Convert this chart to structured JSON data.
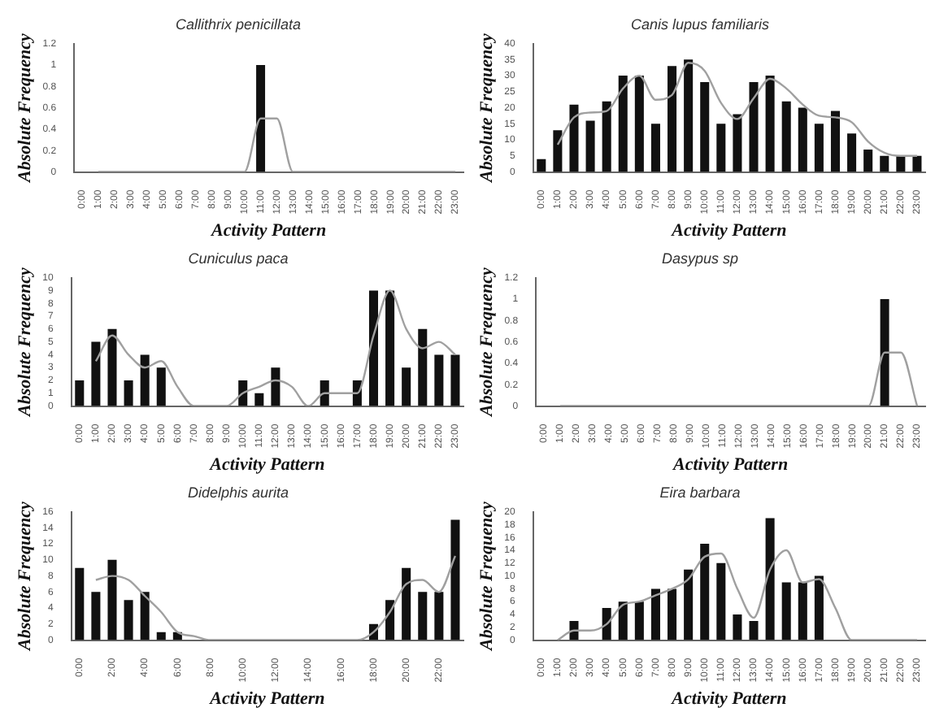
{
  "chart_data": [
    {
      "type": "bar",
      "title": "Callithrix penicillata",
      "xlabel": "Activity Pattern",
      "ylabel": "Absolute Frequency",
      "legend": false,
      "marker": "none",
      "categories": [
        "0:00",
        "1:00",
        "2:00",
        "3:00",
        "4:00",
        "5:00",
        "6:00",
        "7:00",
        "8:00",
        "9:00",
        "10:00",
        "11:00",
        "12:00",
        "13:00",
        "14:00",
        "15:00",
        "16:00",
        "17:00",
        "18:00",
        "19:00",
        "20:00",
        "21:00",
        "22:00",
        "23:00"
      ],
      "ylim": [
        0,
        1.2
      ],
      "yticks": [
        0,
        0.2,
        0.4,
        0.6,
        0.8,
        1,
        1.2
      ],
      "series": [
        {
          "type": "bar",
          "color": "#111111",
          "values": [
            0,
            0,
            0,
            0,
            0,
            0,
            0,
            0,
            0,
            0,
            0,
            1,
            0,
            0,
            0,
            0,
            0,
            0,
            0,
            0,
            0,
            0,
            0,
            0
          ]
        },
        {
          "type": "line",
          "color": "#a0a0a0",
          "values": [
            null,
            0,
            0,
            0,
            0,
            0,
            0,
            0,
            0,
            0,
            0,
            0.5,
            0.5,
            0,
            0,
            0,
            0,
            0,
            0,
            0,
            0,
            0,
            0,
            0
          ]
        }
      ]
    },
    {
      "type": "bar",
      "title": "Canis lupus familiaris",
      "xlabel": "Activity Pattern",
      "ylabel": "Absolute Frequency",
      "legend": false,
      "marker": "none",
      "categories": [
        "0:00",
        "1:00",
        "2:00",
        "3:00",
        "4:00",
        "5:00",
        "6:00",
        "7:00",
        "8:00",
        "9:00",
        "10:00",
        "11:00",
        "12:00",
        "13:00",
        "14:00",
        "15:00",
        "16:00",
        "17:00",
        "18:00",
        "19:00",
        "20:00",
        "21:00",
        "22:00",
        "23:00"
      ],
      "ylim": [
        0,
        40
      ],
      "yticks": [
        0,
        5,
        10,
        15,
        20,
        25,
        30,
        35,
        40
      ],
      "series": [
        {
          "type": "bar",
          "color": "#111111",
          "values": [
            4,
            13,
            21,
            16,
            22,
            30,
            30,
            15,
            33,
            35,
            28,
            15,
            18,
            28,
            30,
            22,
            20,
            15,
            19,
            12,
            7,
            5,
            5,
            5
          ]
        },
        {
          "type": "line",
          "color": "#a0a0a0",
          "values": [
            null,
            8.5,
            17,
            18.5,
            19,
            26,
            30,
            22.5,
            24,
            34,
            31.5,
            21.5,
            16.5,
            23,
            29,
            26,
            21,
            17.5,
            17,
            15.5,
            9.5,
            6,
            5,
            5
          ]
        }
      ]
    },
    {
      "type": "bar",
      "title": "Cuniculus paca",
      "xlabel": "Activity Pattern",
      "ylabel": "Absolute Frequency",
      "legend": false,
      "marker": "none",
      "categories": [
        "0:00",
        "1:00",
        "2:00",
        "3:00",
        "4:00",
        "5:00",
        "6:00",
        "7:00",
        "8:00",
        "9:00",
        "10:00",
        "11:00",
        "12:00",
        "13:00",
        "14:00",
        "15:00",
        "16:00",
        "17:00",
        "18:00",
        "19:00",
        "20:00",
        "21:00",
        "22:00",
        "23:00"
      ],
      "ylim": [
        0,
        10
      ],
      "yticks": [
        0,
        1,
        2,
        3,
        4,
        5,
        6,
        7,
        8,
        9,
        10
      ],
      "series": [
        {
          "type": "bar",
          "color": "#111111",
          "values": [
            2,
            5,
            6,
            2,
            4,
            3,
            0,
            0,
            0,
            0,
            2,
            1,
            3,
            0,
            0,
            2,
            0,
            2,
            9,
            9,
            3,
            6,
            4,
            4
          ]
        },
        {
          "type": "line",
          "color": "#a0a0a0",
          "values": [
            null,
            3.5,
            5.5,
            4,
            3,
            3.5,
            1.5,
            0,
            0,
            0,
            1,
            1.5,
            2,
            1.5,
            0,
            1,
            1,
            1,
            5.5,
            9,
            6,
            4.5,
            5,
            4
          ]
        }
      ]
    },
    {
      "type": "bar",
      "title": "Dasypus sp",
      "xlabel": "Activity Pattern",
      "ylabel": "Absolute Frequency",
      "legend": false,
      "marker": "none",
      "categories": [
        "0:00",
        "1:00",
        "2:00",
        "3:00",
        "4:00",
        "5:00",
        "6:00",
        "7:00",
        "8:00",
        "9:00",
        "10:00",
        "11:00",
        "12:00",
        "13:00",
        "14:00",
        "15:00",
        "16:00",
        "17:00",
        "18:00",
        "19:00",
        "20:00",
        "21:00",
        "22:00",
        "23:00"
      ],
      "ylim": [
        0,
        1.2
      ],
      "yticks": [
        0,
        0.2,
        0.4,
        0.6,
        0.8,
        1,
        1.2
      ],
      "series": [
        {
          "type": "bar",
          "color": "#111111",
          "values": [
            0,
            0,
            0,
            0,
            0,
            0,
            0,
            0,
            0,
            0,
            0,
            0,
            0,
            0,
            0,
            0,
            0,
            0,
            0,
            0,
            0,
            1,
            0,
            0
          ]
        },
        {
          "type": "line",
          "color": "#a0a0a0",
          "values": [
            null,
            0,
            0,
            0,
            0,
            0,
            0,
            0,
            0,
            0,
            0,
            0,
            0,
            0,
            0,
            0,
            0,
            0,
            0,
            0,
            0,
            0.5,
            0.5,
            0
          ]
        }
      ]
    },
    {
      "type": "bar",
      "title": "Didelphis aurita",
      "xlabel": "Activity Pattern",
      "ylabel": "Absolute Frequency",
      "legend": false,
      "marker": "none",
      "categories": [
        "0:00",
        null,
        "2:00",
        null,
        "4:00",
        null,
        "6:00",
        null,
        "8:00",
        null,
        "10:00",
        null,
        "12:00",
        null,
        "14:00",
        null,
        "16:00",
        null,
        "18:00",
        null,
        "20:00",
        null,
        "22:00",
        null
      ],
      "ylim": [
        0,
        16
      ],
      "yticks": [
        0,
        2,
        4,
        6,
        8,
        10,
        12,
        14,
        16
      ],
      "series": [
        {
          "type": "bar",
          "color": "#111111",
          "values": [
            9,
            6,
            10,
            5,
            6,
            1,
            1,
            0,
            0,
            0,
            0,
            0,
            0,
            0,
            0,
            0,
            0,
            0,
            2,
            5,
            9,
            6,
            6,
            15
          ]
        },
        {
          "type": "line",
          "color": "#a0a0a0",
          "values": [
            null,
            7.5,
            8,
            7.5,
            5.5,
            3.5,
            1,
            0.5,
            0,
            0,
            0,
            0,
            0,
            0,
            0,
            0,
            0,
            0,
            1,
            3.5,
            7,
            7.5,
            6,
            10.5
          ]
        }
      ]
    },
    {
      "type": "bar",
      "title": "Eira barbara",
      "xlabel": "Activity Pattern",
      "ylabel": "Absolute Frequency",
      "legend": false,
      "marker": "none",
      "categories": [
        "0:00",
        "1:00",
        "2:00",
        "3:00",
        "4:00",
        "5:00",
        "6:00",
        "7:00",
        "8:00",
        "9:00",
        "10:00",
        "11:00",
        "12:00",
        "13:00",
        "14:00",
        "15:00",
        "16:00",
        "17:00",
        "18:00",
        "19:00",
        "20:00",
        "21:00",
        "22:00",
        "23:00"
      ],
      "ylim": [
        0,
        20
      ],
      "yticks": [
        0,
        2,
        4,
        6,
        8,
        10,
        12,
        14,
        16,
        18,
        20
      ],
      "series": [
        {
          "type": "bar",
          "color": "#111111",
          "values": [
            0,
            0,
            3,
            0,
            5,
            6,
            6,
            8,
            8,
            11,
            15,
            12,
            4,
            3,
            19,
            9,
            9,
            10,
            0,
            0,
            0,
            0,
            0,
            0
          ]
        },
        {
          "type": "line",
          "color": "#a0a0a0",
          "values": [
            null,
            0,
            1.5,
            1.5,
            2.5,
            5.5,
            6,
            7,
            8,
            9.5,
            13,
            13.5,
            8,
            3.5,
            11,
            14,
            9,
            9.5,
            5,
            0,
            0,
            0,
            0,
            0
          ]
        }
      ]
    }
  ]
}
